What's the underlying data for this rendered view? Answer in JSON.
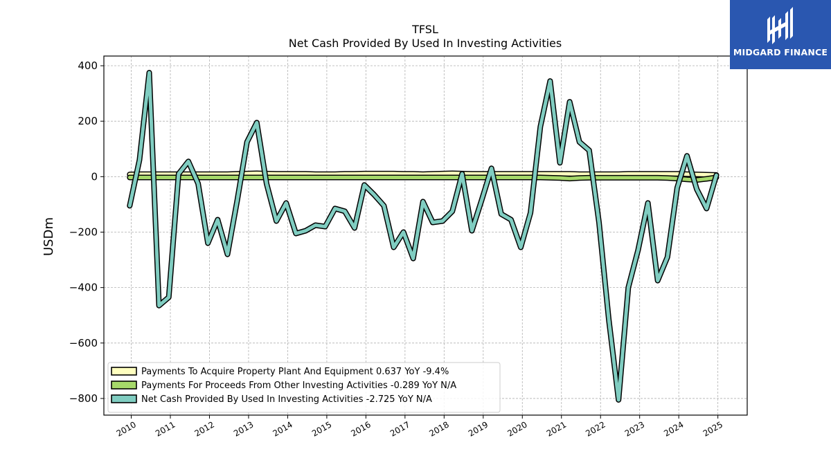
{
  "brand": {
    "name": "MIDGARD FINANCE",
    "color": "#2a57b0"
  },
  "chart_data": {
    "type": "line",
    "title": "TFSL",
    "subtitle": "Net Cash Provided By Used In Investing Activities",
    "ylabel": "USDm",
    "xlabel": "",
    "ylim": [
      -860,
      435
    ],
    "xlim": [
      2009.3,
      2025.75
    ],
    "yticks": [
      400,
      200,
      0,
      -200,
      -400,
      -600,
      -800
    ],
    "ytick_labels": [
      "400",
      "200",
      "0",
      "−200",
      "−400",
      "−600",
      "−800"
    ],
    "xticks": [
      2010,
      2011,
      2012,
      2013,
      2014,
      2015,
      2016,
      2017,
      2018,
      2019,
      2020,
      2021,
      2022,
      2023,
      2024,
      2025
    ],
    "xtick_labels": [
      "2010",
      "2011",
      "2012",
      "2013",
      "2014",
      "2015",
      "2016",
      "2017",
      "2018",
      "2019",
      "2020",
      "2021",
      "2022",
      "2023",
      "2024",
      "2025"
    ],
    "grid": true,
    "legend_position": "lower-left",
    "x": [
      2009.96,
      2010.21,
      2010.46,
      2010.71,
      2010.96,
      2011.21,
      2011.46,
      2011.71,
      2011.96,
      2012.21,
      2012.46,
      2012.71,
      2012.96,
      2013.21,
      2013.46,
      2013.71,
      2013.96,
      2014.21,
      2014.46,
      2014.71,
      2014.96,
      2015.21,
      2015.46,
      2015.71,
      2015.96,
      2016.21,
      2016.46,
      2016.71,
      2016.96,
      2017.21,
      2017.46,
      2017.71,
      2017.96,
      2018.21,
      2018.46,
      2018.71,
      2018.96,
      2019.21,
      2019.46,
      2019.71,
      2019.96,
      2020.21,
      2020.46,
      2020.71,
      2020.96,
      2021.21,
      2021.46,
      2021.71,
      2021.96,
      2022.21,
      2022.46,
      2022.71,
      2022.96,
      2023.21,
      2023.46,
      2023.71,
      2023.96,
      2024.21,
      2024.46,
      2024.71,
      2024.96
    ],
    "series": [
      {
        "name": "Payments To Acquire Property Plant And Equipment  0.637 YoY -9.4%",
        "color": "#ffffbf",
        "values": [
          8,
          9,
          9,
          9,
          9,
          9,
          9,
          9,
          9,
          9,
          9,
          10,
          11,
          12,
          11,
          10,
          10,
          10,
          10,
          9,
          9,
          9,
          10,
          10,
          11,
          11,
          11,
          11,
          10,
          10,
          9,
          10,
          11,
          12,
          11,
          10,
          10,
          10,
          10,
          10,
          10,
          10,
          10,
          10,
          10,
          10,
          9,
          9,
          9,
          9,
          9,
          10,
          10,
          10,
          10,
          10,
          10,
          9,
          8,
          7,
          6
        ]
      },
      {
        "name": "Payments For Proceeds From Other Investing Activities  -0.289 YoY N/A",
        "color": "#a6d96a",
        "values": [
          -3,
          -3,
          -3,
          -3,
          -3,
          -3,
          -3,
          -3,
          -3,
          -3,
          -3,
          -3,
          -3,
          -3,
          -3,
          -3,
          -3,
          -3,
          -3,
          -3,
          -3,
          -3,
          -3,
          -3,
          -3,
          -3,
          -3,
          -3,
          -3,
          -3,
          -3,
          -3,
          -3,
          -3,
          -3,
          -3,
          -3,
          -3,
          -3,
          -3,
          -3,
          -3,
          -3,
          -4,
          -5,
          -7,
          -5,
          -4,
          -4,
          -4,
          -4,
          -4,
          -4,
          -4,
          -4,
          -5,
          -7,
          -10,
          -12,
          -8,
          -3
        ]
      },
      {
        "name": "Net Cash Provided By Used In Investing Activities  -2.725 YoY N/A",
        "color": "#80cdc1",
        "values": [
          -105,
          60,
          375,
          -465,
          -435,
          10,
          55,
          -25,
          -240,
          -155,
          -280,
          -85,
          125,
          195,
          -25,
          -160,
          -95,
          -205,
          -195,
          -175,
          -180,
          -115,
          -125,
          -185,
          -30,
          -65,
          -105,
          -255,
          -200,
          -295,
          -90,
          -165,
          -160,
          -125,
          10,
          -195,
          -85,
          30,
          -135,
          -155,
          -255,
          -130,
          180,
          345,
          50,
          270,
          125,
          95,
          -165,
          -515,
          -805,
          -400,
          -265,
          -95,
          -375,
          -290,
          -40,
          75,
          -45,
          -115,
          5
        ]
      }
    ]
  }
}
